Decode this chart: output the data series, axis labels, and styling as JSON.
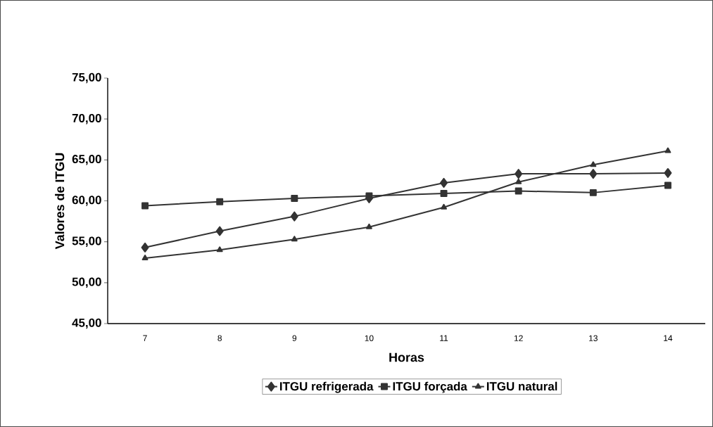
{
  "chart_data": {
    "type": "line",
    "xlabel": "Horas",
    "ylabel": "Valores de ITGU",
    "categories": [
      "7",
      "8",
      "9",
      "10",
      "11",
      "12",
      "13",
      "14"
    ],
    "series": [
      {
        "name": "ITGU refrigerada",
        "color": "#333333",
        "marker": "diamond",
        "values": [
          54.3,
          56.3,
          58.1,
          60.3,
          62.2,
          63.3,
          63.3,
          63.4
        ]
      },
      {
        "name": "ITGU forçada",
        "color": "#333333",
        "marker": "square",
        "values": [
          59.4,
          59.9,
          60.3,
          60.6,
          60.9,
          61.2,
          61.0,
          61.9
        ]
      },
      {
        "name": "ITGU natural",
        "color": "#333333",
        "marker": "triangle",
        "values": [
          53.0,
          54.0,
          55.3,
          56.8,
          59.2,
          62.3,
          64.4,
          66.1
        ]
      }
    ],
    "ylim": [
      45,
      75
    ],
    "yticks": [
      {
        "value": 45,
        "label": "45,00"
      },
      {
        "value": 50,
        "label": "50,00"
      },
      {
        "value": 55,
        "label": "55,00"
      },
      {
        "value": 60,
        "label": "60,00"
      },
      {
        "value": 65,
        "label": "65,00"
      },
      {
        "value": 70,
        "label": "70,00"
      },
      {
        "value": 75,
        "label": "75,00"
      }
    ],
    "grid": false,
    "legend": "bottom",
    "line_style": "solid"
  }
}
